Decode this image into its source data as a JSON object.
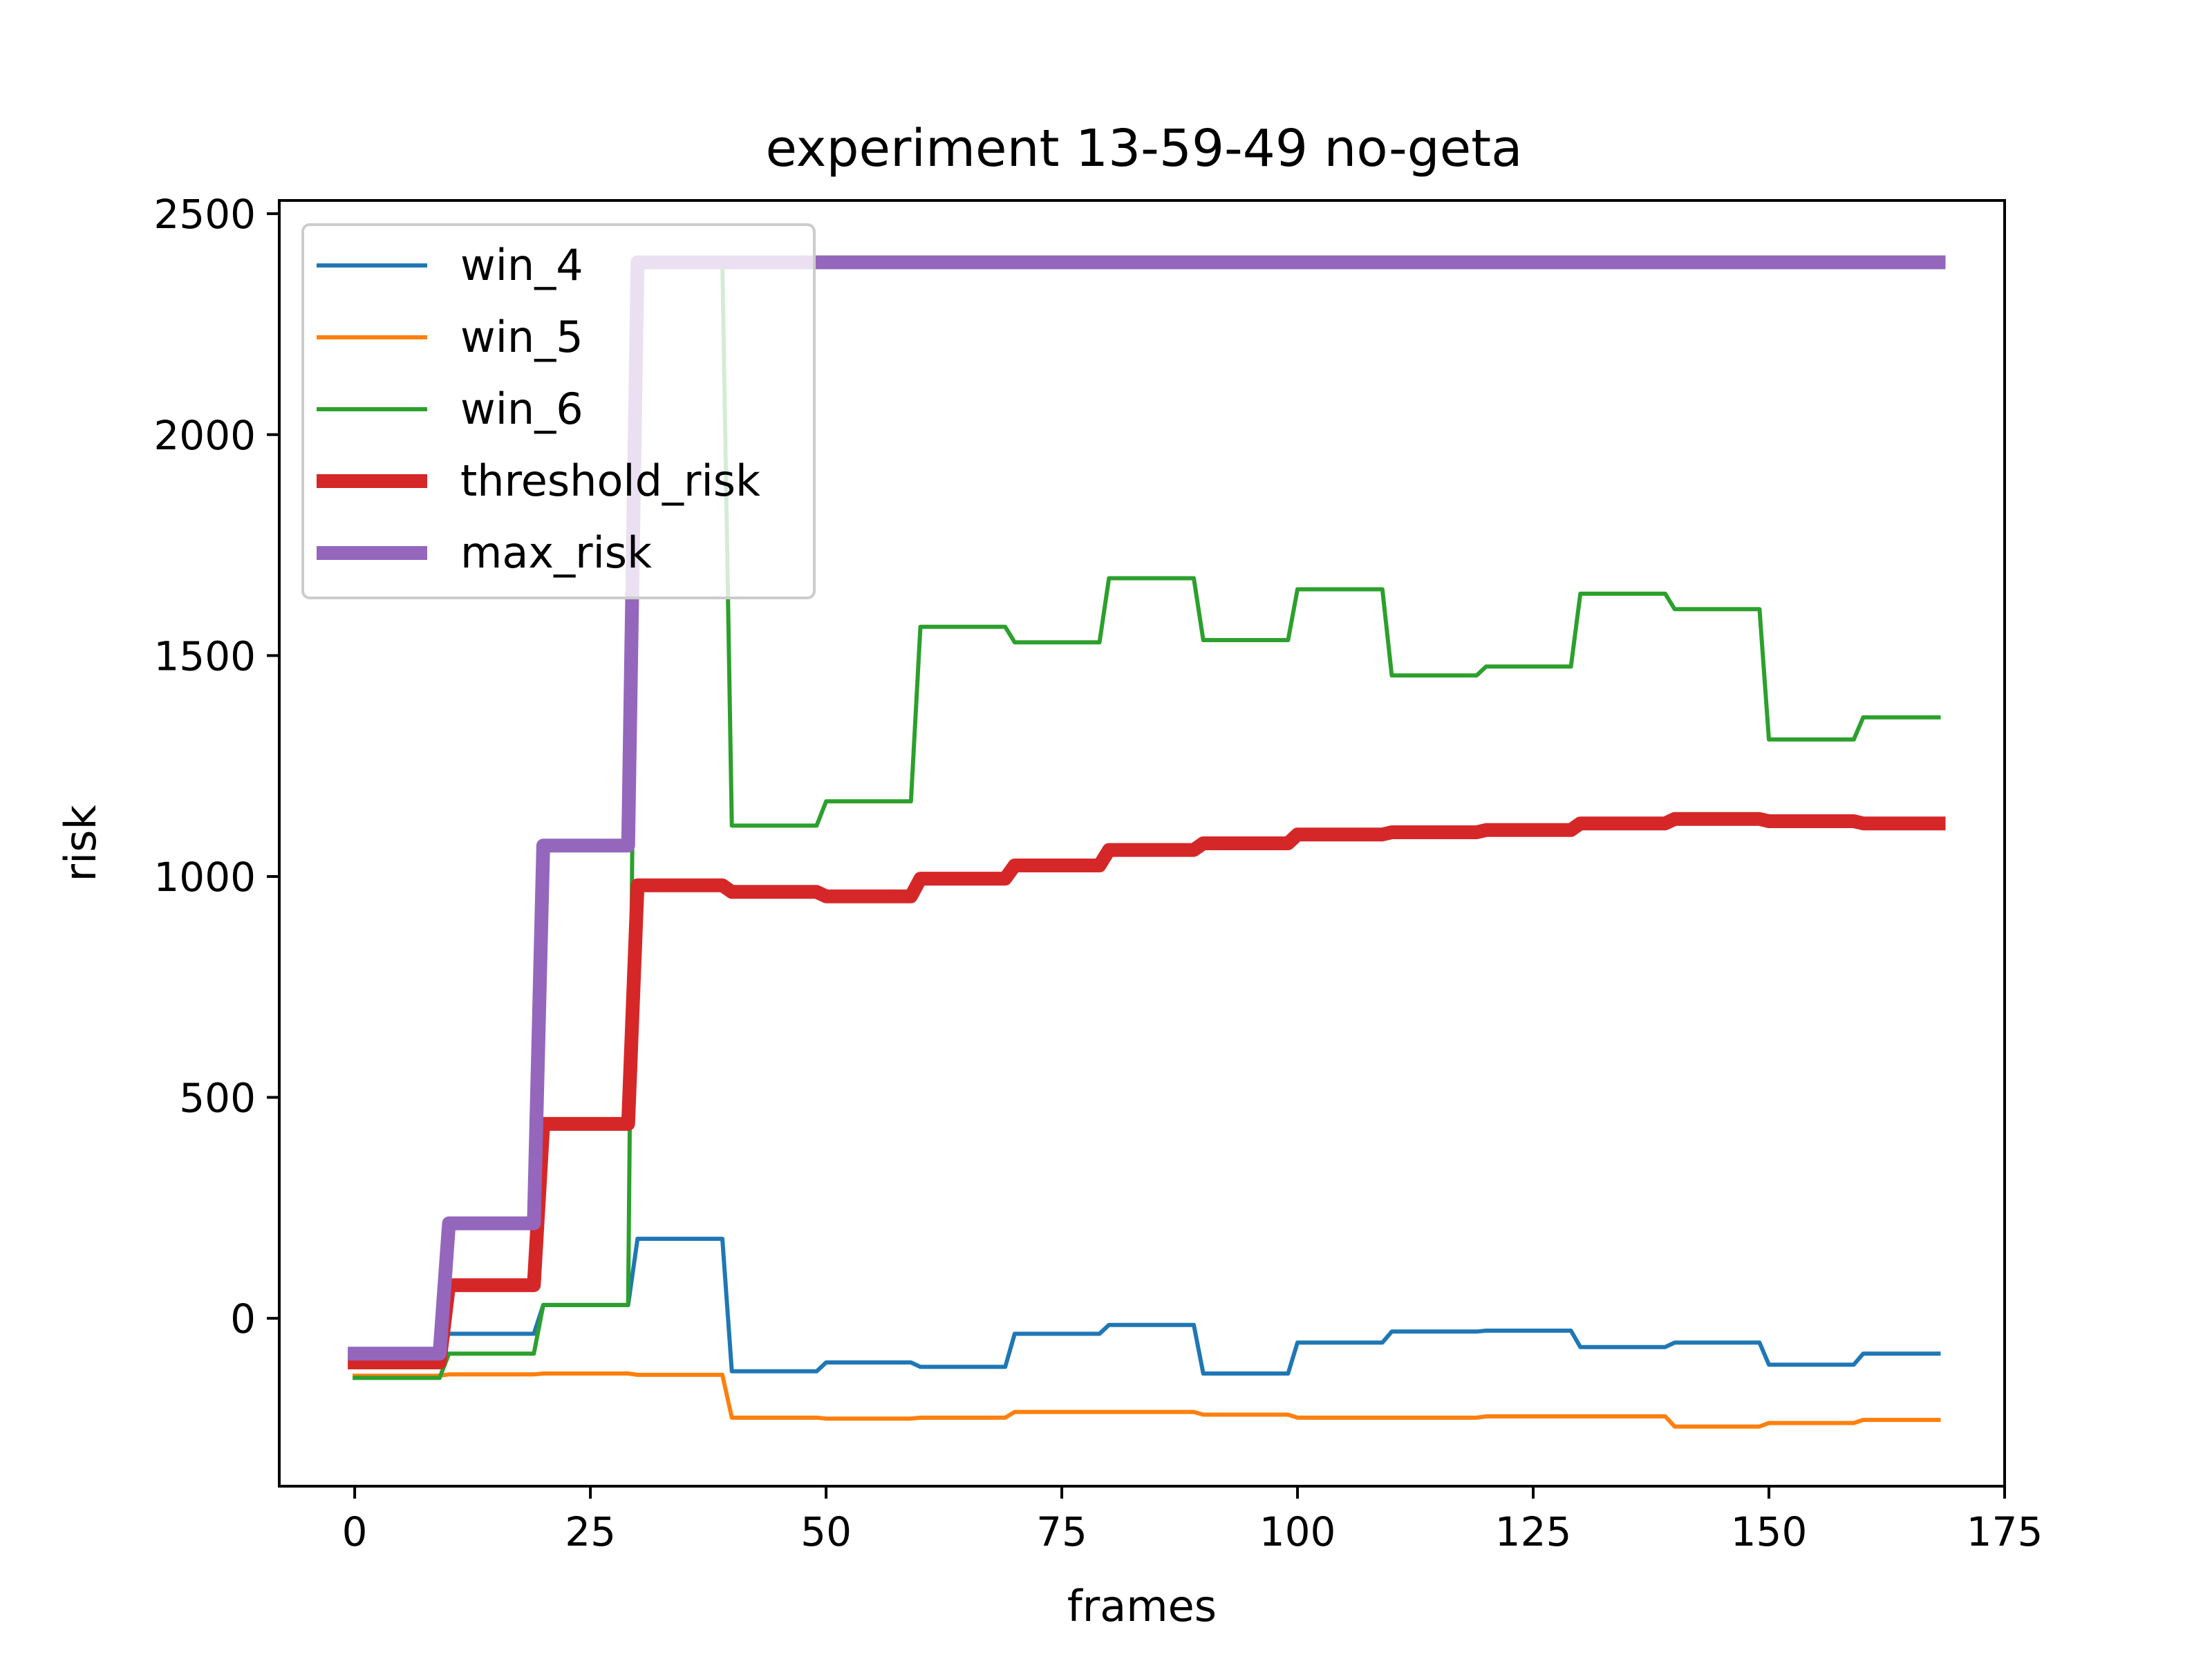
{
  "chart_data": {
    "type": "line",
    "title": "experiment 13-59-49 no-geta",
    "xlabel": "frames",
    "ylabel": "risk",
    "xlim": [
      -8,
      175
    ],
    "ylim": [
      -380,
      2530
    ],
    "xticks": [
      0,
      25,
      50,
      75,
      100,
      125,
      150,
      175
    ],
    "xtick_labels": [
      "0",
      "25",
      "50",
      "75",
      "100",
      "125",
      "150",
      "175"
    ],
    "yticks": [
      0,
      500,
      1000,
      1500,
      2000,
      2500
    ],
    "ytick_labels": [
      "0",
      "500",
      "1000",
      "1500",
      "2000",
      "2500"
    ],
    "grid": false,
    "legend_position": "upper-left",
    "colors": {
      "win_4": "#1f77b4",
      "win_5": "#ff7f0e",
      "win_6": "#2ca02c",
      "threshold_risk": "#d62728",
      "max_risk": "#9467bd"
    },
    "series": [
      {
        "name": "win_4",
        "color": "#1f77b4",
        "width": "thin",
        "points": [
          [
            0,
            -80
          ],
          [
            9,
            -80
          ],
          [
            10,
            -35
          ],
          [
            19,
            -35
          ],
          [
            20,
            30
          ],
          [
            29,
            30
          ],
          [
            30,
            180
          ],
          [
            39,
            180
          ],
          [
            40,
            -120
          ],
          [
            49,
            -120
          ],
          [
            50,
            -100
          ],
          [
            59,
            -100
          ],
          [
            60,
            -110
          ],
          [
            69,
            -110
          ],
          [
            70,
            -35
          ],
          [
            79,
            -35
          ],
          [
            80,
            -15
          ],
          [
            89,
            -15
          ],
          [
            90,
            -125
          ],
          [
            99,
            -125
          ],
          [
            100,
            -55
          ],
          [
            109,
            -55
          ],
          [
            110,
            -30
          ],
          [
            119,
            -30
          ],
          [
            120,
            -28
          ],
          [
            129,
            -28
          ],
          [
            130,
            -65
          ],
          [
            139,
            -65
          ],
          [
            140,
            -55
          ],
          [
            149,
            -55
          ],
          [
            150,
            -105
          ],
          [
            159,
            -105
          ],
          [
            160,
            -80
          ],
          [
            168,
            -80
          ]
        ]
      },
      {
        "name": "win_5",
        "color": "#ff7f0e",
        "width": "thin",
        "points": [
          [
            0,
            -130
          ],
          [
            9,
            -130
          ],
          [
            10,
            -127
          ],
          [
            19,
            -127
          ],
          [
            20,
            -125
          ],
          [
            29,
            -125
          ],
          [
            30,
            -128
          ],
          [
            39,
            -128
          ],
          [
            40,
            -225
          ],
          [
            49,
            -225
          ],
          [
            50,
            -227
          ],
          [
            59,
            -227
          ],
          [
            60,
            -225
          ],
          [
            69,
            -225
          ],
          [
            70,
            -212
          ],
          [
            79,
            -212
          ],
          [
            80,
            -212
          ],
          [
            89,
            -212
          ],
          [
            90,
            -218
          ],
          [
            99,
            -218
          ],
          [
            100,
            -225
          ],
          [
            109,
            -225
          ],
          [
            110,
            -225
          ],
          [
            119,
            -225
          ],
          [
            120,
            -222
          ],
          [
            129,
            -222
          ],
          [
            130,
            -222
          ],
          [
            139,
            -222
          ],
          [
            140,
            -245
          ],
          [
            149,
            -245
          ],
          [
            150,
            -237
          ],
          [
            159,
            -237
          ],
          [
            160,
            -230
          ],
          [
            168,
            -230
          ]
        ]
      },
      {
        "name": "win_6",
        "color": "#2ca02c",
        "width": "thin",
        "points": [
          [
            0,
            -135
          ],
          [
            9,
            -135
          ],
          [
            10,
            -80
          ],
          [
            19,
            -80
          ],
          [
            20,
            30
          ],
          [
            29,
            30
          ],
          [
            30,
            2390
          ],
          [
            39,
            2390
          ],
          [
            40,
            1115
          ],
          [
            49,
            1115
          ],
          [
            50,
            1170
          ],
          [
            59,
            1170
          ],
          [
            60,
            1565
          ],
          [
            69,
            1565
          ],
          [
            70,
            1530
          ],
          [
            79,
            1530
          ],
          [
            80,
            1675
          ],
          [
            89,
            1675
          ],
          [
            90,
            1535
          ],
          [
            99,
            1535
          ],
          [
            100,
            1650
          ],
          [
            109,
            1650
          ],
          [
            110,
            1455
          ],
          [
            119,
            1455
          ],
          [
            120,
            1475
          ],
          [
            129,
            1475
          ],
          [
            130,
            1640
          ],
          [
            139,
            1640
          ],
          [
            140,
            1605
          ],
          [
            149,
            1605
          ],
          [
            150,
            1310
          ],
          [
            159,
            1310
          ],
          [
            160,
            1360
          ],
          [
            168,
            1360
          ]
        ]
      },
      {
        "name": "threshold_risk",
        "color": "#d62728",
        "width": "thick",
        "points": [
          [
            0,
            -100
          ],
          [
            9,
            -100
          ],
          [
            10,
            75
          ],
          [
            19,
            75
          ],
          [
            20,
            440
          ],
          [
            29,
            440
          ],
          [
            30,
            980
          ],
          [
            39,
            980
          ],
          [
            40,
            965
          ],
          [
            49,
            965
          ],
          [
            50,
            955
          ],
          [
            59,
            955
          ],
          [
            60,
            995
          ],
          [
            69,
            995
          ],
          [
            70,
            1025
          ],
          [
            79,
            1025
          ],
          [
            80,
            1060
          ],
          [
            89,
            1060
          ],
          [
            90,
            1075
          ],
          [
            99,
            1075
          ],
          [
            100,
            1095
          ],
          [
            109,
            1095
          ],
          [
            110,
            1100
          ],
          [
            119,
            1100
          ],
          [
            120,
            1105
          ],
          [
            129,
            1105
          ],
          [
            130,
            1120
          ],
          [
            139,
            1120
          ],
          [
            140,
            1130
          ],
          [
            149,
            1130
          ],
          [
            150,
            1125
          ],
          [
            159,
            1125
          ],
          [
            160,
            1120
          ],
          [
            168,
            1120
          ]
        ]
      },
      {
        "name": "max_risk",
        "color": "#9467bd",
        "width": "thick",
        "points": [
          [
            0,
            -80
          ],
          [
            9,
            -80
          ],
          [
            10,
            215
          ],
          [
            19,
            215
          ],
          [
            20,
            1070
          ],
          [
            29,
            1070
          ],
          [
            30,
            2390
          ],
          [
            39,
            2390
          ],
          [
            168,
            2390
          ]
        ]
      }
    ]
  }
}
